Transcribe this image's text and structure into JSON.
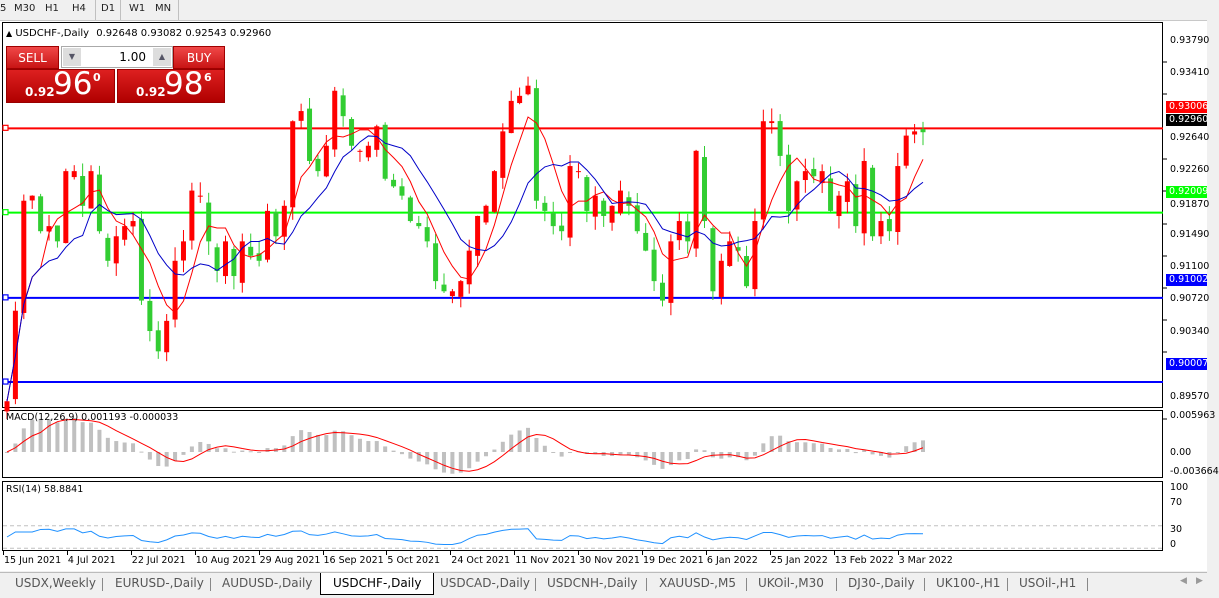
{
  "toolbar": {
    "timeframes": [
      "5",
      "M30",
      "H1",
      "H4",
      "D1",
      "W1",
      "MN"
    ],
    "active": "D1"
  },
  "header": {
    "symbol": "USDCHF-,Daily",
    "ohlc": "0.92648 0.93082 0.92543 0.92960"
  },
  "trade_panel": {
    "sell_label": "SELL",
    "buy_label": "BUY",
    "lot": "1.00",
    "sell_price": {
      "prefix": "0.92",
      "big": "96",
      "sup": "0"
    },
    "buy_price": {
      "prefix": "0.92",
      "big": "98",
      "sup": "6"
    }
  },
  "price_axis": [
    "0.93790",
    "0.93410",
    "0.92640",
    "0.92260",
    "0.91870",
    "0.91490",
    "0.91100",
    "0.90720",
    "0.90340",
    "0.89570"
  ],
  "levels": [
    {
      "price": 0.93006,
      "label": "0.93006",
      "color": "#ff0000"
    },
    {
      "price": 0.92009,
      "label": "0.92009",
      "color": "#00ff00"
    },
    {
      "price": 0.91002,
      "label": "0.91002",
      "color": "#0000ff"
    },
    {
      "price": 0.90007,
      "label": "0.90007",
      "color": "#0000ff"
    }
  ],
  "current_price_label": "0.92960",
  "macd": {
    "label": "MACD(12,26,9) 0.001193 -0.000033",
    "axis": [
      "0.005963",
      "0.00",
      "-0.003664"
    ]
  },
  "rsi": {
    "label": "RSI(14) 58.8841",
    "axis": [
      "100",
      "70",
      "30",
      "0"
    ]
  },
  "dates": [
    "15 Jun 2021",
    "4 Jul 2021",
    "22 Jul 2021",
    "10 Aug 2021",
    "29 Aug 2021",
    "16 Sep 2021",
    "5 Oct 2021",
    "24 Oct 2021",
    "11 Nov 2021",
    "30 Nov 2021",
    "19 Dec 2021",
    "6 Jan 2022",
    "25 Jan 2022",
    "13 Feb 2022",
    "3 Mar 2022"
  ],
  "tabs": [
    "USDX,Weekly",
    "EURUSD-,Daily",
    "AUDUSD-,Daily",
    "USDCHF-,Daily",
    "USDCAD-,Daily",
    "USDCNH-,Daily",
    "XAUUSD-,M5",
    "UKOil-,M30",
    "DJ30-,Daily",
    "UK100-,H1",
    "USOil-,H1"
  ],
  "active_tab": "USDCHF-,Daily",
  "colors": {
    "bull": "#ff0000",
    "bear": "#32cd32",
    "ma_fast": "#ff0000",
    "ma_slow": "#0000c8",
    "rsi": "#1e90ff",
    "macd_hist": "#c0c0c0"
  },
  "chart_data": {
    "type": "candlestick",
    "symbol": "USDCHF",
    "timeframe": "Daily",
    "closes": [
      0.8978,
      0.9085,
      0.9215,
      0.9221,
      0.9179,
      0.9185,
      0.9167,
      0.925,
      0.925,
      0.9209,
      0.925,
      0.9179,
      0.9144,
      0.9173,
      0.9185,
      0.9191,
      0.9097,
      0.9061,
      0.9037,
      0.9073,
      0.9144,
      0.9167,
      0.9227,
      0.9221,
      0.9167,
      0.9132,
      0.9167,
      0.9126,
      0.9167,
      0.915,
      0.9144,
      0.9203,
      0.9173,
      0.9209,
      0.9309,
      0.9321,
      0.9262,
      0.925,
      0.928,
      0.9345,
      0.9315,
      0.928,
      0.9274,
      0.928,
      0.9303,
      0.9241,
      0.9232,
      0.9221,
      0.9191,
      0.9185,
      0.9167,
      0.912,
      0.9108,
      0.9108,
      0.912,
      0.9156,
      0.9197,
      0.9209,
      0.925,
      0.9297,
      0.9333,
      0.9339,
      0.9351,
      0.9215,
      0.9203,
      0.9185,
      0.9179,
      0.9256,
      0.925,
      0.9203,
      0.9221,
      0.9197,
      0.9209,
      0.9227,
      0.9209,
      0.9179,
      0.9156,
      0.912,
      0.9097,
      0.9167,
      0.9191,
      0.9167,
      0.9274,
      0.9191,
      0.9108,
      0.9144,
      0.9167,
      0.9156,
      0.9114,
      0.9191,
      0.9309,
      0.9309,
      0.9268,
      0.9203,
      0.9238,
      0.925,
      0.9244,
      0.925,
      0.9203,
      0.9221,
      0.9238,
      0.9185,
      0.9262,
      0.9173,
      0.9191,
      0.9179,
      0.9256,
      0.9292,
      0.9297,
      0.9296
    ],
    "moving_averages": [
      "fast (red)",
      "slow (blue)"
    ]
  }
}
